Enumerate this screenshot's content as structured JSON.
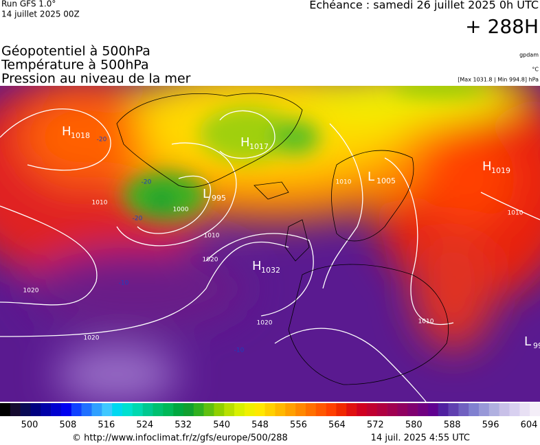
{
  "header": {
    "run": "Run GFS 1.0°",
    "date": "14 juillet 2025 00Z",
    "echeance": "Echéance : samedi 26 juillet 2025 0h UTC",
    "lead": "+ 288H"
  },
  "titles": [
    "Géopotentiel à 500hPa",
    "Température à 500hPa",
    "Pression au niveau de la mer"
  ],
  "units": [
    "gpdam",
    "°C",
    "[Max 1031.8 | Min 994.8] hPa"
  ],
  "centers": [
    {
      "letter": "H",
      "value": "1018"
    },
    {
      "letter": "H",
      "value": "1017"
    },
    {
      "letter": "L",
      "value": "995"
    },
    {
      "letter": "L",
      "value": "1005"
    },
    {
      "letter": "H",
      "value": "1019"
    },
    {
      "letter": "H",
      "value": "1032"
    },
    {
      "letter": "L",
      "value": "99"
    }
  ],
  "isobar_labels": [
    "1000",
    "1010",
    "1020",
    "1020",
    "1020",
    "1010",
    "1010",
    "1010",
    "1020",
    "1010",
    "-20",
    "-20",
    "-20",
    "-10",
    "-10"
  ],
  "colorbar": {
    "colors": [
      "#000000",
      "#150a30",
      "#0a0a55",
      "#000080",
      "#0000a8",
      "#0000d0",
      "#0000f0",
      "#1040ff",
      "#2070ff",
      "#30a0ff",
      "#40c8ff",
      "#00d8f0",
      "#00e0d0",
      "#00d8b0",
      "#00c890",
      "#00c070",
      "#00b858",
      "#00a840",
      "#10a030",
      "#30b020",
      "#60c010",
      "#90d000",
      "#b8e000",
      "#d8f000",
      "#f0f000",
      "#ffe800",
      "#ffd000",
      "#ffb800",
      "#ffa000",
      "#ff8800",
      "#ff7000",
      "#ff5800",
      "#ff4000",
      "#f02800",
      "#e01010",
      "#d00020",
      "#c00030",
      "#b00040",
      "#a00050",
      "#900060",
      "#800070",
      "#700080",
      "#600090",
      "#5020a0",
      "#6040b0",
      "#7060c0",
      "#8080d0",
      "#9898d8",
      "#b0b0e0",
      "#c8c0e8",
      "#d8d0f0",
      "#e8e0f4",
      "#f4eef8"
    ],
    "ticks": [
      500,
      508,
      516,
      524,
      532,
      540,
      548,
      556,
      564,
      572,
      580,
      588,
      596,
      604
    ]
  },
  "footer": {
    "url": "© http://www.infoclimat.fr/z/gfs/europe/500/288",
    "time": "14 juil. 2025  4:55 UTC"
  }
}
